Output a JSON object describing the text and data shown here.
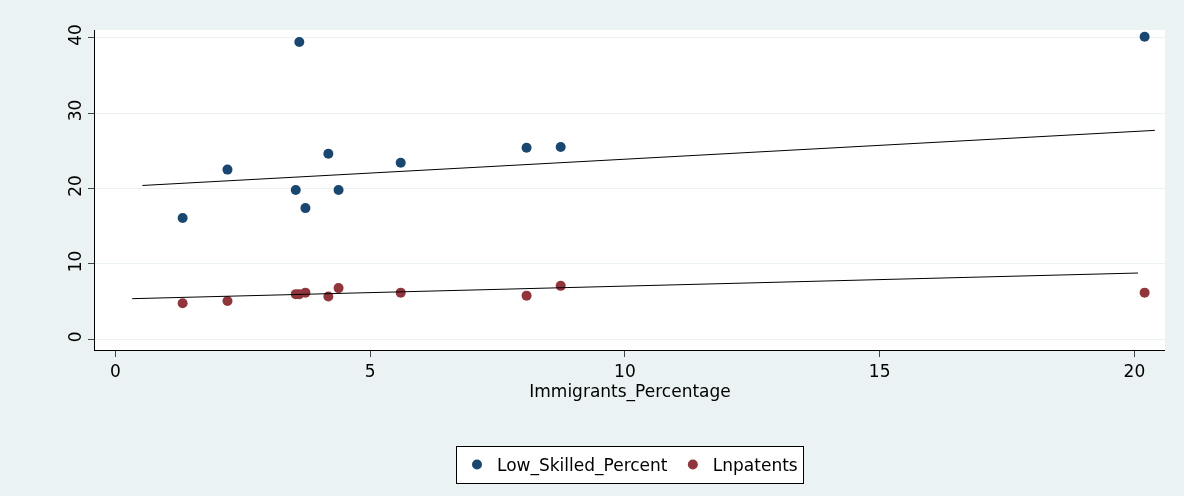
{
  "chart_data": {
    "type": "scatter",
    "xlabel": "Immigrants_Percentage",
    "xlim": [
      -0.4,
      20.6
    ],
    "xticks": [
      0,
      5,
      10,
      15,
      20
    ],
    "ylim": [
      -1.4,
      41
    ],
    "yticks": [
      0,
      10,
      20,
      30,
      40
    ],
    "grid": "y",
    "legend": "bottom",
    "marker": "circle",
    "series": [
      {
        "name": "Low_Skilled_Percent",
        "color": "#1a476f",
        "x": [
          1.32,
          2.2,
          3.54,
          3.61,
          3.73,
          4.18,
          4.38,
          5.6,
          8.07,
          8.74,
          20.2
        ],
        "values": [
          16.1,
          22.5,
          19.8,
          39.4,
          17.4,
          24.6,
          19.8,
          23.4,
          25.4,
          25.5,
          40.1
        ]
      },
      {
        "name": "Lnpatents",
        "color": "#90353b",
        "x": [
          1.32,
          2.2,
          3.54,
          3.61,
          3.73,
          4.18,
          4.38,
          5.6,
          8.07,
          8.74,
          20.2
        ],
        "values": [
          4.8,
          5.1,
          6.0,
          6.0,
          6.2,
          5.7,
          6.8,
          6.2,
          5.8,
          7.1,
          6.2
        ]
      },
      {
        "type": "line",
        "marker": "none",
        "color": "#000000",
        "x": [
          0.53,
          20.4
        ],
        "values": [
          20.4,
          27.7
        ]
      },
      {
        "type": "line",
        "marker": "none",
        "color": "#000000",
        "x": [
          0.33,
          20.07
        ],
        "values": [
          5.4,
          8.8
        ]
      }
    ]
  }
}
